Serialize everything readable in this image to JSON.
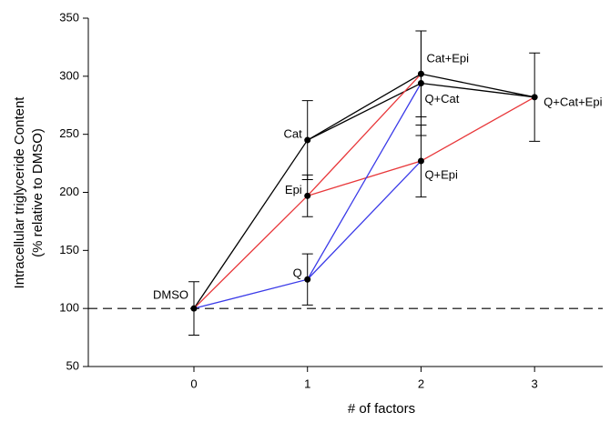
{
  "chart_data": {
    "type": "line",
    "y_label_lines": [
      "Intracellular triglyceride Content",
      "(% relative to DMSO)"
    ],
    "x_label": "# of factors",
    "xlim": [
      -0.93,
      3.6
    ],
    "xticks": [
      0,
      1,
      2,
      3
    ],
    "ylim": [
      50,
      350
    ],
    "yticks": [
      50,
      100,
      150,
      200,
      250,
      300,
      350
    ],
    "reference_line": 100,
    "series": [
      {
        "color": "#000000",
        "x": [
          0,
          1,
          2,
          3
        ],
        "values": [
          100,
          245,
          302,
          282
        ]
      },
      {
        "color": "#000000",
        "x": [
          1,
          2,
          3
        ],
        "values": [
          245,
          294,
          282
        ]
      },
      {
        "color": "#e8373a",
        "x": [
          0,
          1,
          2
        ],
        "values": [
          100,
          197,
          302
        ]
      },
      {
        "color": "#e8373a",
        "x": [
          1,
          2,
          3
        ],
        "values": [
          197,
          227,
          282
        ]
      },
      {
        "color": "#3a3ae8",
        "x": [
          0,
          1,
          2
        ],
        "values": [
          100,
          125,
          294
        ]
      },
      {
        "color": "#3a3ae8",
        "x": [
          1,
          2
        ],
        "values": [
          125,
          227
        ]
      }
    ],
    "points": [
      {
        "label": "DMSO",
        "x": 0,
        "y": 100,
        "error": 23
      },
      {
        "label": "Cat",
        "x": 1,
        "y": 245,
        "error": 34
      },
      {
        "label": "Epi",
        "x": 1,
        "y": 197,
        "error": 18
      },
      {
        "label": "Q",
        "x": 1,
        "y": 125,
        "error": 22
      },
      {
        "label": "Cat+Epi",
        "x": 2,
        "y": 302,
        "error": 37
      },
      {
        "label": "Q+Cat",
        "x": 2,
        "y": 294,
        "error": 45
      },
      {
        "label": "Q+Epi",
        "x": 2,
        "y": 227,
        "error": 31
      },
      {
        "label": "Q+Cat+Epi",
        "x": 3,
        "y": 282,
        "error": 38
      }
    ]
  }
}
